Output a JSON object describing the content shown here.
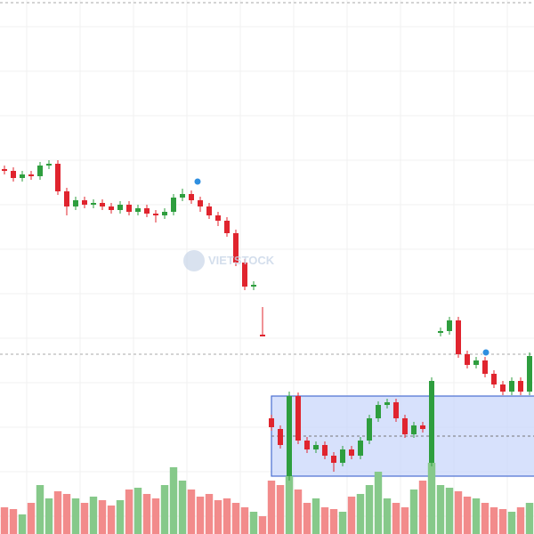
{
  "chart_data": {
    "type": "candlestick",
    "watermark": "VIETSTOCK",
    "open": [
      410,
      408,
      400,
      404,
      402,
      414,
      416,
      385,
      368,
      375,
      370,
      372,
      368,
      364,
      370,
      362,
      366,
      360,
      358,
      362,
      378,
      382,
      375,
      368,
      358,
      352,
      338,
      305,
      278,
      224,
      130,
      118,
      65,
      155,
      105,
      95,
      100,
      88,
      80,
      95,
      88,
      105,
      130,
      145,
      148,
      130,
      112,
      122,
      80,
      226,
      228,
      240,
      202,
      190,
      195,
      180,
      168,
      160,
      172,
      160
    ],
    "high": [
      414,
      412,
      408,
      408,
      418,
      420,
      420,
      389,
      379,
      379,
      376,
      376,
      372,
      374,
      374,
      370,
      370,
      364,
      366,
      382,
      388,
      386,
      379,
      372,
      362,
      356,
      342,
      309,
      284,
      255,
      134,
      122,
      160,
      159,
      109,
      104,
      104,
      92,
      99,
      99,
      109,
      134,
      149,
      152,
      152,
      134,
      126,
      126,
      176,
      232,
      244,
      244,
      206,
      199,
      199,
      184,
      172,
      176,
      176,
      204
    ],
    "low": [
      404,
      396,
      396,
      398,
      398,
      410,
      381,
      358,
      364,
      366,
      366,
      364,
      360,
      360,
      358,
      358,
      356,
      350,
      354,
      358,
      374,
      371,
      362,
      354,
      346,
      334,
      301,
      274,
      274,
      222,
      116,
      96,
      60,
      101,
      91,
      91,
      84,
      70,
      76,
      84,
      84,
      101,
      126,
      141,
      126,
      108,
      108,
      114,
      76,
      222,
      224,
      198,
      186,
      186,
      176,
      164,
      156,
      156,
      156,
      156
    ],
    "close": [
      408,
      400,
      404,
      402,
      414,
      416,
      385,
      368,
      375,
      370,
      372,
      368,
      364,
      370,
      362,
      366,
      360,
      358,
      362,
      378,
      382,
      375,
      368,
      358,
      352,
      338,
      305,
      278,
      280,
      222,
      120,
      100,
      155,
      105,
      95,
      100,
      88,
      80,
      95,
      88,
      105,
      130,
      145,
      148,
      130,
      112,
      122,
      118,
      172,
      228,
      240,
      202,
      190,
      195,
      180,
      168,
      160,
      172,
      160,
      200
    ],
    "volume": [
      30,
      28,
      22,
      35,
      55,
      40,
      48,
      45,
      40,
      35,
      42,
      38,
      32,
      38,
      50,
      52,
      45,
      40,
      55,
      75,
      60,
      50,
      42,
      45,
      38,
      40,
      35,
      30,
      25,
      20,
      60,
      55,
      65,
      50,
      35,
      40,
      30,
      28,
      25,
      42,
      45,
      55,
      70,
      40,
      35,
      30,
      50,
      60,
      80,
      55,
      52,
      48,
      42,
      40,
      35,
      30,
      28,
      25,
      30,
      35
    ],
    "ylim": [
      0,
      600
    ],
    "volume_ylim": [
      0,
      100
    ],
    "up_color": "#2e9e3e",
    "down_color": "#e0242e",
    "volume_up_color": "#86c98a",
    "volume_down_color": "#f28b8b",
    "grid": true
  }
}
